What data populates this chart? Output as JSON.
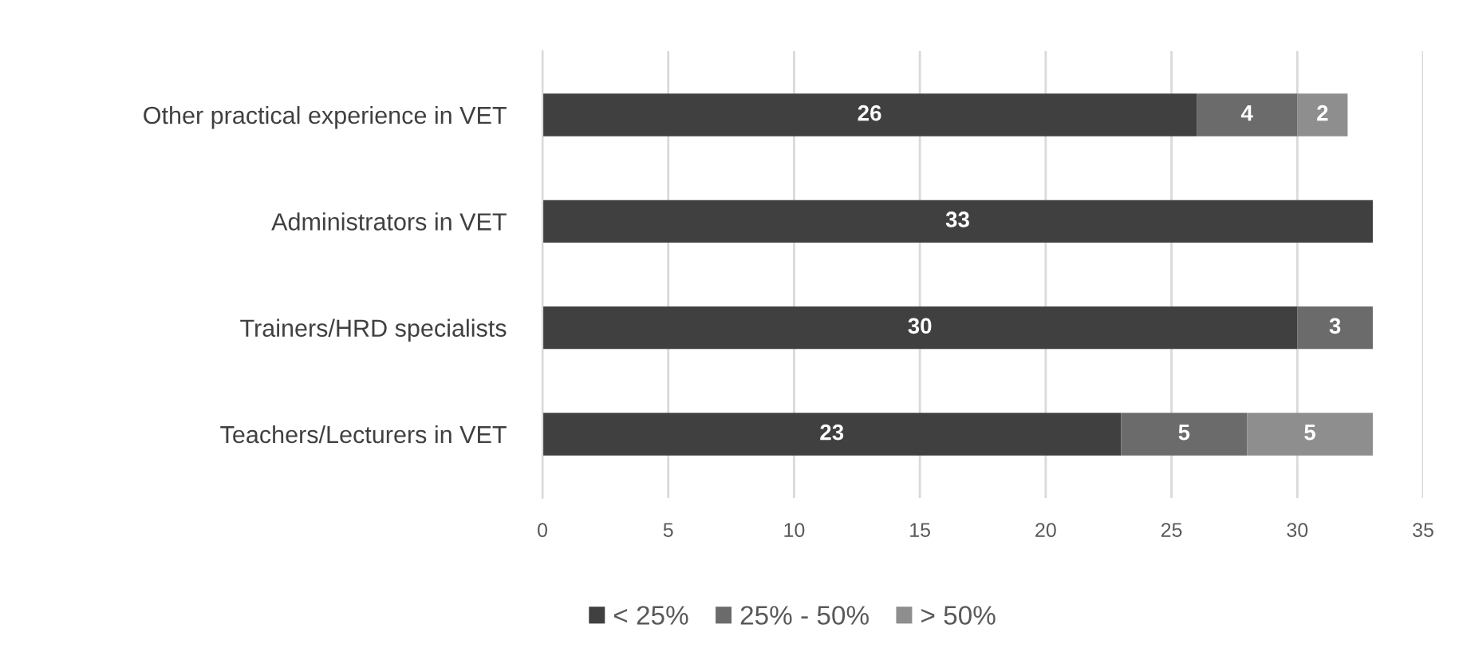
{
  "chart_data": {
    "type": "bar",
    "orientation": "horizontal",
    "stacked": true,
    "categories": [
      "Other practical experience in VET",
      "Administrators in VET",
      "Trainers/HRD specialists",
      "Teachers/Lecturers in VET"
    ],
    "series": [
      {
        "name": "< 25%",
        "color": "#404040",
        "values": [
          26,
          33,
          30,
          23
        ]
      },
      {
        "name": "25% - 50%",
        "color": "#6b6b6b",
        "values": [
          4,
          null,
          3,
          5
        ]
      },
      {
        "name": "> 50%",
        "color": "#8e8e8e",
        "values": [
          2,
          null,
          null,
          5
        ]
      }
    ],
    "xlim": [
      0,
      35
    ],
    "xticks": [
      0,
      5,
      10,
      15,
      20,
      25,
      30,
      35
    ],
    "grid": "x",
    "legend": "bottom",
    "data_labels": true
  }
}
